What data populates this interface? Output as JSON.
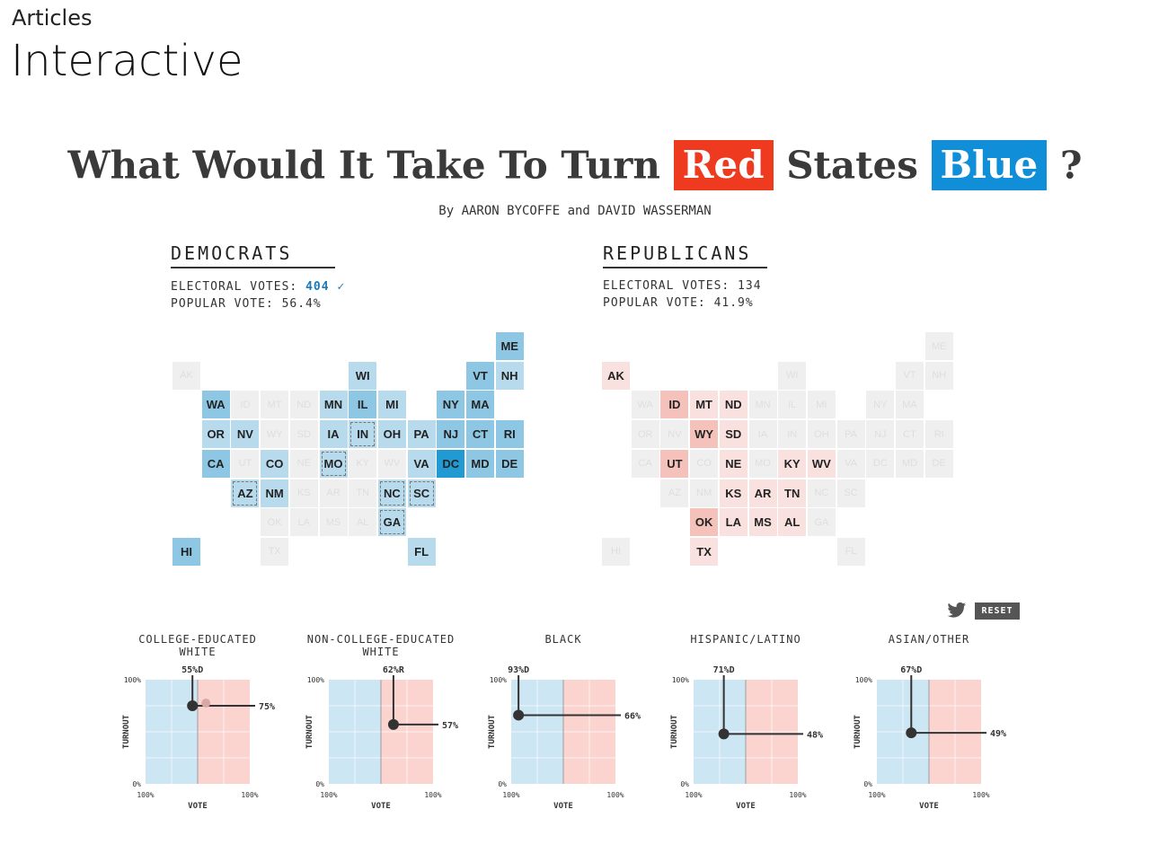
{
  "page": {
    "breadcrumb": "Articles",
    "title": "Interactive"
  },
  "headline": {
    "part1": "What Would It Take To Turn",
    "red_word": "Red",
    "part2": "States",
    "blue_word": "Blue",
    "qmark": "?"
  },
  "byline": "By AARON BYCOFFE and DAVID WASSERMAN",
  "democrats": {
    "title": "DEMOCRATS",
    "ev_label": "ELECTORAL VOTES: ",
    "ev_value": "404",
    "ev_check": "✓",
    "pv_text": "POPULAR VOTE: 56.4%"
  },
  "republicans": {
    "title": "REPUBLICANS",
    "ev_text": "ELECTORAL VOTES: 134",
    "pv_text": "POPULAR VOTE: 41.9%"
  },
  "colors": {
    "dem_light": "#b7dbed",
    "dem_mid": "#8ec7e3",
    "dem_dark": "#2199d3",
    "rep_light": "#f9e1df",
    "rep_mid": "#f4c1bb",
    "off": "#efefef",
    "headline_red": "#ee3b1f",
    "headline_blue": "#108ed8"
  },
  "states": [
    {
      "s": "ME",
      "c": 11,
      "r": 0,
      "d": "dem_mid",
      "rp": "off"
    },
    {
      "s": "AK",
      "c": 0,
      "r": 1,
      "d": "off",
      "rp": "rep_light"
    },
    {
      "s": "WI",
      "c": 6,
      "r": 1,
      "d": "dem_light",
      "rp": "off"
    },
    {
      "s": "VT",
      "c": 10,
      "r": 1,
      "d": "dem_mid",
      "rp": "off"
    },
    {
      "s": "NH",
      "c": 11,
      "r": 1,
      "d": "dem_light",
      "rp": "off"
    },
    {
      "s": "WA",
      "c": 1,
      "r": 2,
      "d": "dem_mid",
      "rp": "off"
    },
    {
      "s": "ID",
      "c": 2,
      "r": 2,
      "d": "off",
      "rp": "rep_mid"
    },
    {
      "s": "MT",
      "c": 3,
      "r": 2,
      "d": "off",
      "rp": "rep_light"
    },
    {
      "s": "ND",
      "c": 4,
      "r": 2,
      "d": "off",
      "rp": "rep_light"
    },
    {
      "s": "MN",
      "c": 5,
      "r": 2,
      "d": "dem_light",
      "rp": "off"
    },
    {
      "s": "IL",
      "c": 6,
      "r": 2,
      "d": "dem_mid",
      "rp": "off"
    },
    {
      "s": "MI",
      "c": 7,
      "r": 2,
      "d": "dem_light",
      "rp": "off"
    },
    {
      "s": "NY",
      "c": 9,
      "r": 2,
      "d": "dem_mid",
      "rp": "off"
    },
    {
      "s": "MA",
      "c": 10,
      "r": 2,
      "d": "dem_mid",
      "rp": "off"
    },
    {
      "s": "OR",
      "c": 1,
      "r": 3,
      "d": "dem_light",
      "rp": "off"
    },
    {
      "s": "NV",
      "c": 2,
      "r": 3,
      "d": "dem_light",
      "rp": "off"
    },
    {
      "s": "WY",
      "c": 3,
      "r": 3,
      "d": "off",
      "rp": "rep_mid"
    },
    {
      "s": "SD",
      "c": 4,
      "r": 3,
      "d": "off",
      "rp": "rep_light"
    },
    {
      "s": "IA",
      "c": 5,
      "r": 3,
      "d": "dem_light",
      "rp": "off"
    },
    {
      "s": "IN",
      "c": 6,
      "r": 3,
      "d": "dem_light",
      "rp": "off",
      "dash": true
    },
    {
      "s": "OH",
      "c": 7,
      "r": 3,
      "d": "dem_light",
      "rp": "off"
    },
    {
      "s": "PA",
      "c": 8,
      "r": 3,
      "d": "dem_light",
      "rp": "off"
    },
    {
      "s": "NJ",
      "c": 9,
      "r": 3,
      "d": "dem_mid",
      "rp": "off"
    },
    {
      "s": "CT",
      "c": 10,
      "r": 3,
      "d": "dem_mid",
      "rp": "off"
    },
    {
      "s": "RI",
      "c": 11,
      "r": 3,
      "d": "dem_mid",
      "rp": "off"
    },
    {
      "s": "CA",
      "c": 1,
      "r": 4,
      "d": "dem_mid",
      "rp": "off"
    },
    {
      "s": "UT",
      "c": 2,
      "r": 4,
      "d": "off",
      "rp": "rep_mid"
    },
    {
      "s": "CO",
      "c": 3,
      "r": 4,
      "d": "dem_light",
      "rp": "off"
    },
    {
      "s": "NE",
      "c": 4,
      "r": 4,
      "d": "off",
      "rp": "rep_light"
    },
    {
      "s": "MO",
      "c": 5,
      "r": 4,
      "d": "dem_light",
      "rp": "off",
      "dash": true
    },
    {
      "s": "KY",
      "c": 6,
      "r": 4,
      "d": "off",
      "rp": "rep_light"
    },
    {
      "s": "WV",
      "c": 7,
      "r": 4,
      "d": "off",
      "rp": "rep_light"
    },
    {
      "s": "VA",
      "c": 8,
      "r": 4,
      "d": "dem_light",
      "rp": "off"
    },
    {
      "s": "DC",
      "c": 9,
      "r": 4,
      "d": "dem_dark",
      "rp": "off"
    },
    {
      "s": "MD",
      "c": 10,
      "r": 4,
      "d": "dem_mid",
      "rp": "off"
    },
    {
      "s": "DE",
      "c": 11,
      "r": 4,
      "d": "dem_mid",
      "rp": "off"
    },
    {
      "s": "AZ",
      "c": 2,
      "r": 5,
      "d": "dem_light",
      "rp": "off",
      "dash": true
    },
    {
      "s": "NM",
      "c": 3,
      "r": 5,
      "d": "dem_light",
      "rp": "off"
    },
    {
      "s": "KS",
      "c": 4,
      "r": 5,
      "d": "off",
      "rp": "rep_light"
    },
    {
      "s": "AR",
      "c": 5,
      "r": 5,
      "d": "off",
      "rp": "rep_light"
    },
    {
      "s": "TN",
      "c": 6,
      "r": 5,
      "d": "off",
      "rp": "rep_light"
    },
    {
      "s": "NC",
      "c": 7,
      "r": 5,
      "d": "dem_light",
      "rp": "off",
      "dash": true
    },
    {
      "s": "SC",
      "c": 8,
      "r": 5,
      "d": "dem_light",
      "rp": "off",
      "dash": true
    },
    {
      "s": "OK",
      "c": 3,
      "r": 6,
      "d": "off",
      "rp": "rep_mid"
    },
    {
      "s": "LA",
      "c": 4,
      "r": 6,
      "d": "off",
      "rp": "rep_light"
    },
    {
      "s": "MS",
      "c": 5,
      "r": 6,
      "d": "off",
      "rp": "rep_light"
    },
    {
      "s": "AL",
      "c": 6,
      "r": 6,
      "d": "off",
      "rp": "rep_light"
    },
    {
      "s": "GA",
      "c": 7,
      "r": 6,
      "d": "dem_light",
      "rp": "off",
      "dash": true
    },
    {
      "s": "HI",
      "c": 0,
      "r": 7,
      "d": "dem_mid",
      "rp": "off"
    },
    {
      "s": "TX",
      "c": 3,
      "r": 7,
      "d": "off",
      "rp": "rep_light"
    },
    {
      "s": "FL",
      "c": 8,
      "r": 7,
      "d": "dem_light",
      "rp": "off"
    }
  ],
  "controls": {
    "twitter_icon": "twitter-bird-icon",
    "reset_label": "RESET"
  },
  "axis": {
    "turnout_label": "TURNOUT",
    "vote_label": "VOTE",
    "y_top": "100%",
    "y_bottom": "0%",
    "x_left": "100%",
    "x_right": "100%"
  },
  "chart_data": [
    {
      "type": "scatter",
      "title_lines": [
        "COLLEGE-EDUCATED",
        "WHITE"
      ],
      "vote_label": "55%D",
      "turnout_label": "75%",
      "vote_share": 55,
      "winner": "D",
      "turnout": 75,
      "ghost": true
    },
    {
      "type": "scatter",
      "title_lines": [
        "NON-COLLEGE-EDUCATED",
        "WHITE"
      ],
      "vote_label": "62%R",
      "turnout_label": "57%",
      "vote_share": 62,
      "winner": "R",
      "turnout": 57,
      "ghost": false
    },
    {
      "type": "scatter",
      "title_lines": [
        "BLACK"
      ],
      "vote_label": "93%D",
      "turnout_label": "66%",
      "vote_share": 93,
      "winner": "D",
      "turnout": 66,
      "ghost": false
    },
    {
      "type": "scatter",
      "title_lines": [
        "HISPANIC/LATINO"
      ],
      "vote_label": "71%D",
      "turnout_label": "48%",
      "vote_share": 71,
      "winner": "D",
      "turnout": 48,
      "ghost": false
    },
    {
      "type": "scatter",
      "title_lines": [
        "ASIAN/OTHER"
      ],
      "vote_label": "67%D",
      "turnout_label": "49%",
      "vote_share": 67,
      "winner": "D",
      "turnout": 49,
      "ghost": false
    }
  ]
}
